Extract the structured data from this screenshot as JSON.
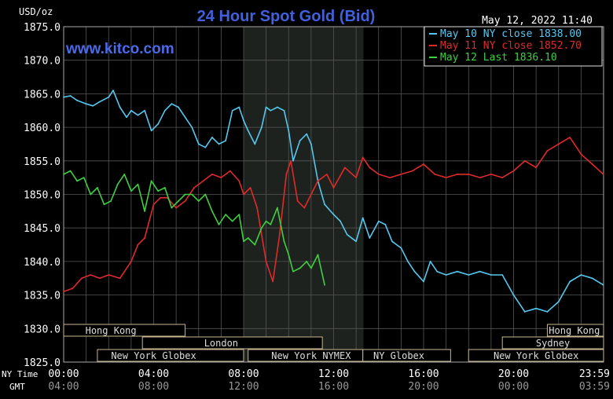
{
  "chart_data": {
    "type": "line",
    "title": "24 Hour Spot Gold (Bid)",
    "watermark": "www.kitco.com",
    "currency_label": "USD/oz",
    "timestamp": "May 12, 2022 11:40",
    "ylim": [
      1825,
      1875
    ],
    "y_ticks": [
      "1875.0",
      "1870.0",
      "1865.0",
      "1860.0",
      "1855.0",
      "1850.0",
      "1845.0",
      "1840.0",
      "1835.0",
      "1830.0",
      "1825.0"
    ],
    "x_ticks_ny": [
      "00:00",
      "04:00",
      "08:00",
      "12:00",
      "16:00",
      "20:00",
      "23:59"
    ],
    "x_ticks_gmt": [
      "04:00",
      "08:00",
      "12:00",
      "16:00",
      "20:00",
      "00:00",
      "03:59"
    ],
    "x_row_labels": {
      "ny": "NY Time",
      "gmt": "GMT"
    },
    "legend": [
      {
        "label": "May 10 NY close 1838.00",
        "color": "#55c8f0"
      },
      {
        "label": "May 11 NY close 1852.70",
        "color": "#e02a2a"
      },
      {
        "label": "May 12 Last 1836.10",
        "color": "#3ed03e"
      }
    ],
    "shaded_region_hours": [
      8,
      13.33
    ],
    "sessions": [
      {
        "name": "Hong Kong",
        "row": 0,
        "start": 0,
        "end": 5.4,
        "label_center": 2.1
      },
      {
        "name": "Hong Kong",
        "row": 0,
        "start": 21.5,
        "end": 24,
        "label_center": 22.7
      },
      {
        "name": "London",
        "row": 1,
        "start": 3.5,
        "end": 11.5,
        "label_center": 7.0
      },
      {
        "name": "Sydney",
        "row": 1,
        "start": 19.5,
        "end": 24,
        "label_center": 21.75
      },
      {
        "name": "New York Globex",
        "row": 2,
        "start": 1.5,
        "end": 8.0,
        "label_center": 4.0
      },
      {
        "name": "New York NYMEX",
        "row": 2,
        "start": 8.2,
        "end": 13.3,
        "label_center": 11.0
      },
      {
        "name": "NY Globex",
        "row": 2,
        "start": 13.3,
        "end": 17.2,
        "label_center": 14.9
      },
      {
        "name": "New York Globex",
        "row": 2,
        "start": 18.0,
        "end": 24,
        "label_center": 21.0
      }
    ],
    "series": [
      {
        "name": "May 10",
        "color": "#55c8f0",
        "x": [
          0,
          0.3,
          0.6,
          1,
          1.3,
          1.6,
          2,
          2.2,
          2.5,
          2.8,
          3,
          3.3,
          3.6,
          3.9,
          4.2,
          4.5,
          4.8,
          5.1,
          5.4,
          5.7,
          6,
          6.3,
          6.6,
          6.9,
          7.2,
          7.5,
          7.8,
          8,
          8.2,
          8.5,
          8.8,
          9,
          9.2,
          9.5,
          9.8,
          10,
          10.2,
          10.5,
          10.8,
          11,
          11.3,
          11.6,
          12,
          12.3,
          12.6,
          13,
          13.3,
          13.6,
          14,
          14.3,
          14.6,
          15,
          15.3,
          15.6,
          16,
          16.3,
          16.6,
          17,
          17.5,
          18,
          18.5,
          19,
          19.5,
          20,
          20.5,
          21,
          21.5,
          22,
          22.5,
          23,
          23.5,
          23.99
        ],
        "y": [
          1864.5,
          1864.7,
          1864,
          1863.5,
          1863.2,
          1863.8,
          1864.5,
          1865.5,
          1863,
          1861.5,
          1862.5,
          1861.8,
          1862.5,
          1859.5,
          1860.5,
          1862.5,
          1863.5,
          1863,
          1861.5,
          1860,
          1857.5,
          1857,
          1858.5,
          1857.5,
          1858,
          1862.5,
          1863,
          1861,
          1859.5,
          1857.5,
          1860,
          1863,
          1862.5,
          1863,
          1862.5,
          1859.5,
          1855,
          1858,
          1859,
          1857.5,
          1852,
          1848.5,
          1847,
          1846,
          1844,
          1843,
          1846.5,
          1843.5,
          1846,
          1845.5,
          1843,
          1842,
          1840,
          1838.5,
          1837,
          1840,
          1838.5,
          1838,
          1838.5,
          1838,
          1838.5,
          1838,
          1838,
          1835,
          1832.5,
          1833,
          1832.5,
          1834,
          1837,
          1838,
          1837.5,
          1836.5
        ]
      },
      {
        "name": "May 11",
        "color": "#e02a2a",
        "x": [
          0,
          0.4,
          0.8,
          1.2,
          1.6,
          2,
          2.5,
          3,
          3.3,
          3.6,
          4,
          4.3,
          4.6,
          5,
          5.4,
          5.8,
          6.2,
          6.6,
          7,
          7.4,
          7.8,
          8,
          8.3,
          8.6,
          9,
          9.3,
          9.6,
          9.9,
          10.1,
          10.4,
          10.7,
          11,
          11.3,
          11.7,
          12,
          12.5,
          13,
          13.3,
          13.6,
          14,
          14.5,
          15,
          15.5,
          16,
          16.5,
          17,
          17.5,
          18,
          18.5,
          19,
          19.5,
          20,
          20.5,
          21,
          21.5,
          22,
          22.5,
          23,
          23.5,
          23.99
        ],
        "y": [
          1835.5,
          1836,
          1837.5,
          1838,
          1837.5,
          1838,
          1837.5,
          1840,
          1842.5,
          1843.5,
          1848.5,
          1849.5,
          1849.5,
          1848,
          1849,
          1851,
          1852,
          1853,
          1852.5,
          1853.5,
          1852,
          1850,
          1851,
          1848,
          1840,
          1837,
          1844,
          1853,
          1855,
          1849,
          1848,
          1850,
          1852,
          1853,
          1851,
          1854,
          1852.5,
          1855.5,
          1854,
          1853,
          1852.5,
          1853,
          1853.5,
          1854.5,
          1853,
          1852.5,
          1853,
          1853,
          1852.5,
          1853,
          1852.5,
          1853.5,
          1855,
          1854,
          1856.5,
          1857.5,
          1858.5,
          1856,
          1854.5,
          1853
        ]
      },
      {
        "name": "May 12",
        "color": "#3ed03e",
        "x": [
          0,
          0.3,
          0.6,
          0.9,
          1.2,
          1.5,
          1.8,
          2.1,
          2.4,
          2.7,
          3,
          3.3,
          3.6,
          3.9,
          4.2,
          4.5,
          4.8,
          5.1,
          5.4,
          5.7,
          6,
          6.3,
          6.6,
          6.9,
          7.2,
          7.5,
          7.8,
          8,
          8.2,
          8.5,
          8.8,
          9,
          9.2,
          9.5,
          9.8,
          10,
          10.2,
          10.5,
          10.8,
          11,
          11.3,
          11.6
        ],
        "y": [
          1853,
          1853.5,
          1852,
          1852.5,
          1850,
          1851,
          1848.5,
          1849,
          1851.5,
          1853,
          1850.5,
          1851.5,
          1847.5,
          1852,
          1850.5,
          1851,
          1848,
          1849,
          1850,
          1850,
          1849,
          1850,
          1847.5,
          1845.5,
          1847,
          1846,
          1847,
          1843,
          1843.5,
          1842.5,
          1845,
          1846,
          1845.5,
          1848,
          1843,
          1841,
          1838.5,
          1839,
          1840,
          1839,
          1841,
          1836.5
        ]
      }
    ]
  }
}
